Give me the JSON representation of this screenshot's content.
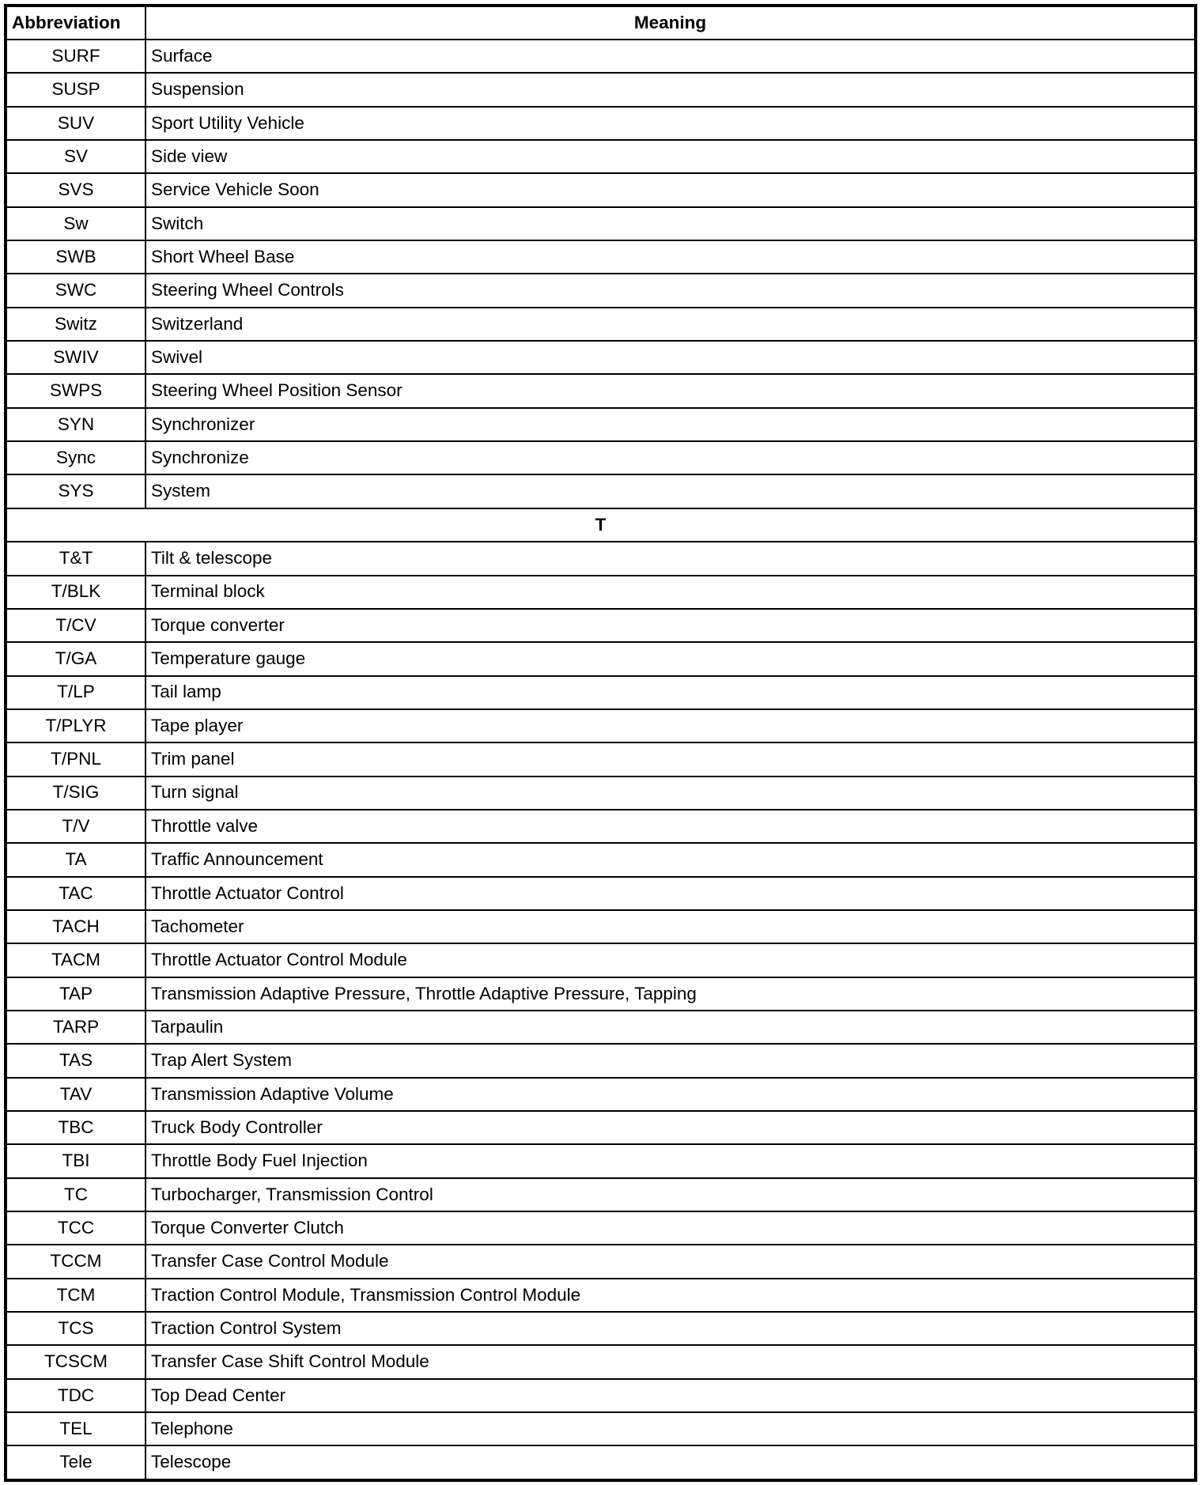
{
  "header": {
    "abbreviation": "Abbreviation",
    "meaning": "Meaning"
  },
  "rows": [
    {
      "abbr": "SURF",
      "meaning": "Surface"
    },
    {
      "abbr": "SUSP",
      "meaning": "Suspension"
    },
    {
      "abbr": "SUV",
      "meaning": "Sport Utility Vehicle"
    },
    {
      "abbr": "SV",
      "meaning": "Side view"
    },
    {
      "abbr": "SVS",
      "meaning": "Service Vehicle Soon"
    },
    {
      "abbr": "Sw",
      "meaning": "Switch"
    },
    {
      "abbr": "SWB",
      "meaning": "Short Wheel Base"
    },
    {
      "abbr": "SWC",
      "meaning": "Steering Wheel Controls"
    },
    {
      "abbr": "Switz",
      "meaning": "Switzerland"
    },
    {
      "abbr": "SWIV",
      "meaning": "Swivel"
    },
    {
      "abbr": "SWPS",
      "meaning": "Steering Wheel Position Sensor"
    },
    {
      "abbr": "SYN",
      "meaning": "Synchronizer"
    },
    {
      "abbr": "Sync",
      "meaning": "Synchronize"
    },
    {
      "abbr": "SYS",
      "meaning": "System"
    },
    {
      "section": "T"
    },
    {
      "abbr": "T&T",
      "meaning": "Tilt & telescope"
    },
    {
      "abbr": "T/BLK",
      "meaning": "Terminal block"
    },
    {
      "abbr": "T/CV",
      "meaning": "Torque converter"
    },
    {
      "abbr": "T/GA",
      "meaning": "Temperature gauge"
    },
    {
      "abbr": "T/LP",
      "meaning": "Tail lamp"
    },
    {
      "abbr": "T/PLYR",
      "meaning": "Tape player"
    },
    {
      "abbr": "T/PNL",
      "meaning": "Trim panel"
    },
    {
      "abbr": "T/SIG",
      "meaning": "Turn signal"
    },
    {
      "abbr": "T/V",
      "meaning": "Throttle valve"
    },
    {
      "abbr": "TA",
      "meaning": "Traffic Announcement"
    },
    {
      "abbr": "TAC",
      "meaning": "Throttle Actuator Control"
    },
    {
      "abbr": "TACH",
      "meaning": "Tachometer"
    },
    {
      "abbr": "TACM",
      "meaning": "Throttle Actuator Control Module"
    },
    {
      "abbr": "TAP",
      "meaning": "Transmission Adaptive Pressure, Throttle Adaptive Pressure, Tapping"
    },
    {
      "abbr": "TARP",
      "meaning": "Tarpaulin"
    },
    {
      "abbr": "TAS",
      "meaning": "Trap Alert System"
    },
    {
      "abbr": "TAV",
      "meaning": "Transmission Adaptive Volume"
    },
    {
      "abbr": "TBC",
      "meaning": "Truck Body Controller"
    },
    {
      "abbr": "TBI",
      "meaning": "Throttle Body Fuel Injection"
    },
    {
      "abbr": "TC",
      "meaning": "Turbocharger, Transmission Control"
    },
    {
      "abbr": "TCC",
      "meaning": "Torque Converter Clutch"
    },
    {
      "abbr": "TCCM",
      "meaning": "Transfer Case Control Module"
    },
    {
      "abbr": "TCM",
      "meaning": "Traction Control Module, Transmission Control Module"
    },
    {
      "abbr": "TCS",
      "meaning": "Traction Control System"
    },
    {
      "abbr": "TCSCM",
      "meaning": "Transfer Case Shift Control Module"
    },
    {
      "abbr": "TDC",
      "meaning": "Top Dead Center"
    },
    {
      "abbr": "TEL",
      "meaning": "Telephone"
    },
    {
      "abbr": "Tele",
      "meaning": "Telescope"
    }
  ]
}
